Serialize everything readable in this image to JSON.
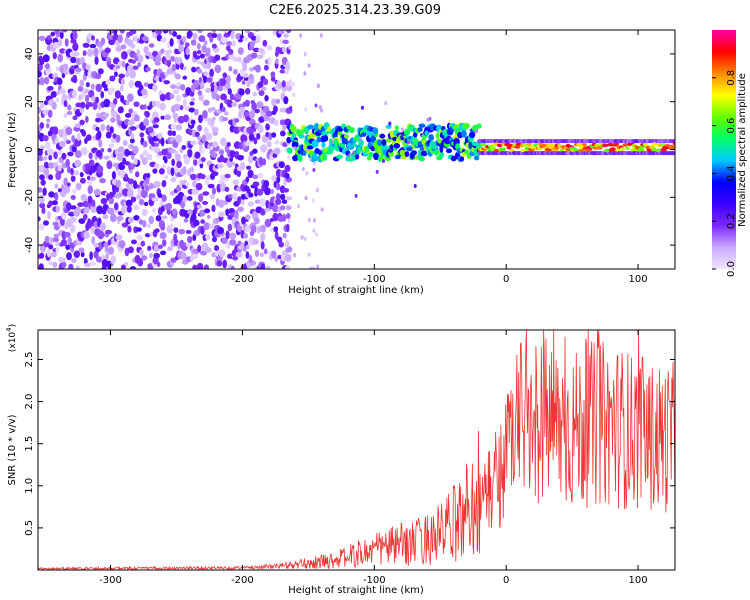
{
  "title": "C2E6.2025.314.23.39.G09",
  "chart_data": [
    {
      "type": "heatmap",
      "name": "spectrogram",
      "xlabel": "Height of straight line (km)",
      "ylabel": "Frequency (Hz)",
      "xlim": [
        -355,
        128
      ],
      "ylim": [
        -50,
        50
      ],
      "xticks": [
        -300,
        -200,
        -100,
        0,
        100
      ],
      "xtick_labels": [
        "-300",
        "-200",
        "-100",
        "0",
        "100"
      ],
      "yticks": [
        -40,
        -20,
        0,
        20,
        40
      ],
      "ytick_labels": [
        "-40",
        "-20",
        "0",
        "20",
        "40"
      ],
      "colorbar": {
        "label": "Normalized spectral amplitude",
        "range": [
          0,
          1
        ],
        "ticks": [
          0.0,
          0.2,
          0.4,
          0.6,
          0.8
        ],
        "tick_labels": [
          "0.0",
          "0.2",
          "0.4",
          "0.6",
          "0.8"
        ],
        "colormap": [
          "#f0e6ff",
          "#c9a8ff",
          "#7a28ff",
          "#3c00ff",
          "#0000ff",
          "#00ccff",
          "#00ff66",
          "#66ff00",
          "#ffff00",
          "#ff8800",
          "#ff0000",
          "#ff00aa"
        ]
      },
      "regions": [
        {
          "x_range": [
            -355,
            -165
          ],
          "freq_range": [
            -50,
            50
          ],
          "description": "broadband noise",
          "amplitude_range": [
            0.02,
            0.25
          ]
        },
        {
          "x_range": [
            -165,
            -20
          ],
          "freq_center": 3,
          "freq_halfwidth": 7,
          "amplitude_range": [
            0.3,
            0.7
          ]
        },
        {
          "x_range": [
            -20,
            128
          ],
          "freq_center": 1,
          "freq_halfwidth": 3,
          "amplitude_range": [
            0.6,
            0.95
          ]
        }
      ]
    },
    {
      "type": "line",
      "name": "snr",
      "xlabel": "Height of straight line (km)",
      "ylabel": "SNR (10 * v/v)",
      "yscale_label": "(x10",
      "yscale_exp": "4",
      "scale": 10000,
      "xlim": [
        -355,
        128
      ],
      "ylim": [
        0,
        28500
      ],
      "xticks": [
        -300,
        -200,
        -100,
        0,
        100
      ],
      "xtick_labels": [
        "-300",
        "-200",
        "-100",
        "0",
        "100"
      ],
      "yticks": [
        0.5,
        1.0,
        1.5,
        2.0,
        2.5
      ],
      "ytick_labels": [
        "0.5",
        "1.0",
        "1.5",
        "2.0",
        "2.5"
      ],
      "color": "#ee3333",
      "envelope": {
        "x": [
          -355,
          -200,
          -160,
          -130,
          -110,
          -90,
          -70,
          -50,
          -35,
          -25,
          -15,
          -5,
          5,
          15,
          25,
          35,
          50,
          65,
          80,
          95,
          110,
          128
        ],
        "y": [
          200,
          300,
          600,
          1200,
          2000,
          2800,
          3200,
          4300,
          6000,
          8500,
          11000,
          14000,
          19000,
          22000,
          22000,
          21000,
          20000,
          21000,
          21000,
          20000,
          19000,
          19000
        ]
      },
      "peak_max": 28500
    }
  ]
}
